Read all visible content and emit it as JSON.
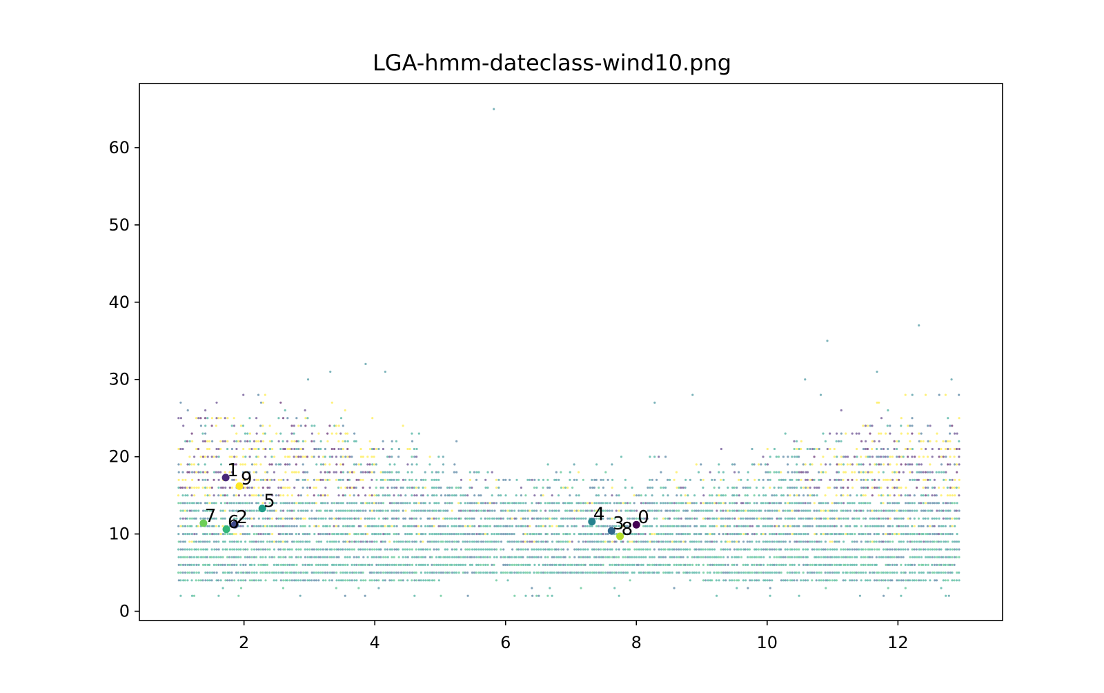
{
  "window": {
    "title": "LGA-hmm-dateclass-wind10.png"
  },
  "chart_data": {
    "type": "scatter",
    "title": "LGA-hmm-dateclass-wind10.png",
    "xlabel": "",
    "ylabel": "",
    "xlim": [
      0.4,
      13.6
    ],
    "ylim": [
      -1.2,
      68.3
    ],
    "xticks": [
      2,
      4,
      6,
      8,
      10,
      12
    ],
    "yticks": [
      0,
      10,
      20,
      30,
      40,
      50,
      60
    ],
    "grid": false,
    "legend": "none",
    "colormap": "viridis",
    "class_colors": [
      "#440154",
      "#482878",
      "#3e4989",
      "#31688e",
      "#26828e",
      "#1f9e89",
      "#35b779",
      "#6ece58",
      "#b5de2b",
      "#fde725"
    ],
    "centroids": [
      {
        "label": "0",
        "x": 8.0,
        "y": 11.2
      },
      {
        "label": "1",
        "x": 1.72,
        "y": 17.3
      },
      {
        "label": "2",
        "x": 1.86,
        "y": 11.2
      },
      {
        "label": "3",
        "x": 7.62,
        "y": 10.4
      },
      {
        "label": "4",
        "x": 7.32,
        "y": 11.6
      },
      {
        "label": "5",
        "x": 2.28,
        "y": 13.3
      },
      {
        "label": "6",
        "x": 1.73,
        "y": 10.6
      },
      {
        "label": "7",
        "x": 1.38,
        "y": 11.4
      },
      {
        "label": "8",
        "x": 7.75,
        "y": 9.7
      },
      {
        "label": "9",
        "x": 1.93,
        "y": 16.2
      }
    ],
    "outliers": [
      {
        "x": 5.82,
        "y": 65
      },
      {
        "x": 12.32,
        "y": 37
      },
      {
        "x": 10.92,
        "y": 35
      },
      {
        "x": 3.86,
        "y": 32
      },
      {
        "x": 4.16,
        "y": 31
      },
      {
        "x": 3.32,
        "y": 31
      },
      {
        "x": 2.98,
        "y": 30
      },
      {
        "x": 10.58,
        "y": 30
      },
      {
        "x": 12.82,
        "y": 30
      },
      {
        "x": 11.68,
        "y": 31
      },
      {
        "x": 2.86,
        "y": 2
      },
      {
        "x": 4.06,
        "y": 3
      },
      {
        "x": 11.42,
        "y": 2
      },
      {
        "x": 12.78,
        "y": 2
      },
      {
        "x": 8.28,
        "y": 27
      },
      {
        "x": 8.86,
        "y": 28
      },
      {
        "x": 12.22,
        "y": 28
      },
      {
        "x": 10.82,
        "y": 28
      }
    ],
    "bulk_profile": {
      "x_range": [
        1.0,
        12.95
      ],
      "y_values": [
        2,
        3,
        4,
        5,
        6,
        7,
        8,
        9,
        10,
        11,
        12,
        13,
        14,
        15,
        16,
        17,
        18,
        19,
        20,
        21,
        22,
        23,
        24,
        25,
        26,
        27,
        28
      ],
      "typical_max_y_by_month": [
        {
          "month": 1,
          "max_y": 25
        },
        {
          "month": 2,
          "max_y": 25
        },
        {
          "month": 3,
          "max_y": 25
        },
        {
          "month": 4,
          "max_y": 23
        },
        {
          "month": 5,
          "max_y": 20
        },
        {
          "month": 6,
          "max_y": 18
        },
        {
          "month": 7,
          "max_y": 17
        },
        {
          "month": 8,
          "max_y": 17
        },
        {
          "month": 9,
          "max_y": 18
        },
        {
          "month": 10,
          "max_y": 21
        },
        {
          "month": 11,
          "max_y": 23
        },
        {
          "month": 12,
          "max_y": 25
        },
        {
          "month": 13,
          "max_y": 25
        }
      ]
    }
  }
}
